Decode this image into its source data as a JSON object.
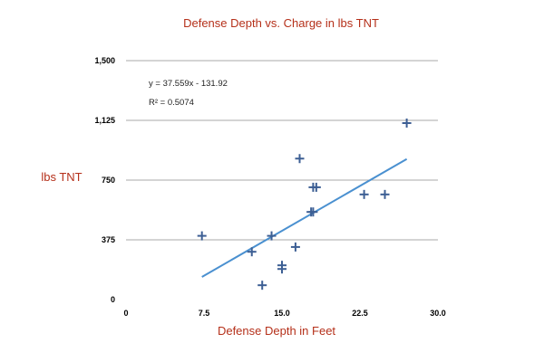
{
  "chart_data": {
    "type": "scatter",
    "title": "Defense Depth vs. Charge in lbs TNT",
    "xlabel": "Defense Depth in Feet",
    "ylabel": "lbs TNT",
    "xlim": [
      0,
      30
    ],
    "ylim": [
      0,
      1500
    ],
    "x_ticks": [
      "0",
      "7.5",
      "15.0",
      "22.5",
      "30.0"
    ],
    "y_ticks": [
      "0",
      "375",
      "750",
      "1,125",
      "1,500"
    ],
    "grid": "horizontal",
    "marker": "plus",
    "colors": {
      "points": "#3d5f94",
      "trendline": "#4a90d0",
      "title": "#b5301a",
      "grid": "#aaaaaa"
    },
    "points": [
      {
        "x": 7.3,
        "y": 400
      },
      {
        "x": 12.1,
        "y": 300
      },
      {
        "x": 13.1,
        "y": 90
      },
      {
        "x": 14.0,
        "y": 400
      },
      {
        "x": 15.0,
        "y": 215
      },
      {
        "x": 15.0,
        "y": 192
      },
      {
        "x": 16.3,
        "y": 330
      },
      {
        "x": 16.7,
        "y": 885
      },
      {
        "x": 17.8,
        "y": 550
      },
      {
        "x": 18.0,
        "y": 550
      },
      {
        "x": 18.0,
        "y": 705
      },
      {
        "x": 18.3,
        "y": 705
      },
      {
        "x": 22.9,
        "y": 660
      },
      {
        "x": 24.9,
        "y": 660
      },
      {
        "x": 27.0,
        "y": 1108
      }
    ],
    "trendline": {
      "slope": 37.559,
      "intercept": -131.92,
      "x_range": [
        7.3,
        27.0
      ]
    },
    "annotations": {
      "equation": "y = 37.559x - 131.92",
      "r_squared": "R² = 0.5074"
    }
  }
}
